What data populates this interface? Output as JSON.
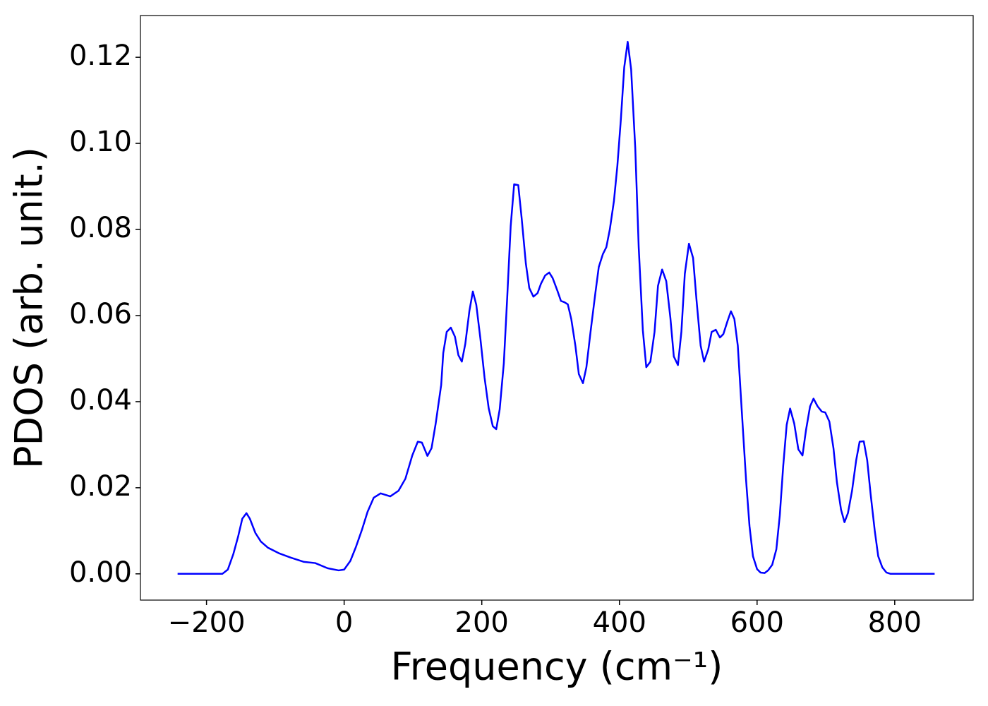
{
  "chart_data": {
    "type": "line",
    "xlabel": "Frequency (cm⁻¹)",
    "ylabel": "PDOS (arb. unit.)",
    "x": [
      -242,
      -177,
      -169,
      -161,
      -154,
      -148,
      -142,
      -137,
      -129,
      -121,
      -111,
      -95,
      -78,
      -59,
      -42,
      -24,
      -8,
      0,
      9,
      17,
      26,
      34,
      43,
      53,
      67,
      79,
      89,
      99,
      107,
      113,
      121,
      127,
      133,
      141,
      144,
      149,
      155,
      161,
      166,
      171,
      176,
      182,
      187,
      192,
      198,
      204,
      210,
      216,
      221,
      226,
      232,
      237,
      242,
      247,
      253,
      258,
      264,
      269,
      275,
      281,
      286,
      292,
      298,
      303,
      310,
      315,
      320,
      325,
      330,
      336,
      341,
      347,
      352,
      358,
      365,
      370,
      376,
      381,
      386,
      392,
      397,
      402,
      407,
      412,
      417,
      423,
      428,
      434,
      439,
      445,
      451,
      456,
      462,
      468,
      474,
      479,
      485,
      490,
      495,
      501,
      507,
      512,
      518,
      523,
      529,
      534,
      540,
      546,
      551,
      557,
      562,
      567,
      572,
      577,
      584,
      589,
      594,
      600,
      605,
      611,
      616,
      622,
      628,
      633,
      638,
      643,
      648,
      654,
      660,
      666,
      671,
      677,
      682,
      688,
      694,
      699,
      705,
      711,
      716,
      722,
      727,
      732,
      738,
      744,
      749,
      755,
      760,
      765,
      771,
      776,
      782,
      788,
      794,
      858
    ],
    "series": [
      {
        "name": "PDOS",
        "color": "#0000ff",
        "values": [
          0,
          0,
          0.001,
          0.0046,
          0.0087,
          0.0128,
          0.0141,
          0.0128,
          0.0095,
          0.0075,
          0.0061,
          0.0048,
          0.0038,
          0.0028,
          0.0025,
          0.0013,
          0.0008,
          0.001,
          0.003,
          0.0062,
          0.0103,
          0.0144,
          0.0177,
          0.0187,
          0.018,
          0.0193,
          0.0221,
          0.0275,
          0.0307,
          0.0305,
          0.0274,
          0.0292,
          0.0349,
          0.0439,
          0.0513,
          0.0562,
          0.0572,
          0.0551,
          0.0508,
          0.0493,
          0.0534,
          0.0611,
          0.0656,
          0.0625,
          0.0546,
          0.0456,
          0.0385,
          0.0343,
          0.0336,
          0.0382,
          0.0489,
          0.0644,
          0.0808,
          0.0905,
          0.0903,
          0.0825,
          0.0721,
          0.0664,
          0.0644,
          0.0652,
          0.0674,
          0.0693,
          0.07,
          0.0687,
          0.0657,
          0.0634,
          0.0631,
          0.0626,
          0.0592,
          0.053,
          0.0464,
          0.0443,
          0.048,
          0.0562,
          0.0652,
          0.0713,
          0.0743,
          0.0759,
          0.08,
          0.0866,
          0.0948,
          0.1054,
          0.1177,
          0.1236,
          0.1172,
          0.0989,
          0.0759,
          0.0566,
          0.048,
          0.0493,
          0.0562,
          0.0669,
          0.0707,
          0.068,
          0.0595,
          0.0505,
          0.0485,
          0.0562,
          0.0697,
          0.0767,
          0.0734,
          0.0636,
          0.053,
          0.0493,
          0.0521,
          0.0562,
          0.0567,
          0.0549,
          0.0557,
          0.0587,
          0.061,
          0.0592,
          0.053,
          0.0398,
          0.0218,
          0.0111,
          0.0041,
          0.0011,
          0.0003,
          0.0002,
          0.0008,
          0.0021,
          0.0057,
          0.0136,
          0.0251,
          0.0346,
          0.0384,
          0.0349,
          0.0289,
          0.0275,
          0.0333,
          0.0389,
          0.0407,
          0.0389,
          0.0377,
          0.0375,
          0.0354,
          0.0292,
          0.0213,
          0.0149,
          0.012,
          0.0141,
          0.0193,
          0.0264,
          0.0307,
          0.0308,
          0.0264,
          0.0185,
          0.01,
          0.0041,
          0.0015,
          0.0003,
          0,
          0
        ]
      }
    ],
    "xlim": [
      -296,
      914
    ],
    "ylim": [
      -0.0061,
      0.1297
    ],
    "xticks": [
      {
        "value": -200,
        "label": "−200"
      },
      0,
      200,
      400,
      600,
      800
    ],
    "yticks": [
      {
        "value": 0,
        "label": "0.00"
      },
      {
        "value": 0.02,
        "label": "0.02"
      },
      {
        "value": 0.04,
        "label": "0.04"
      },
      {
        "value": 0.06,
        "label": "0.06"
      },
      {
        "value": 0.08,
        "label": "0.08"
      },
      {
        "value": 0.1,
        "label": "0.10"
      },
      {
        "value": 0.12,
        "label": "0.12"
      }
    ],
    "grid": false
  }
}
